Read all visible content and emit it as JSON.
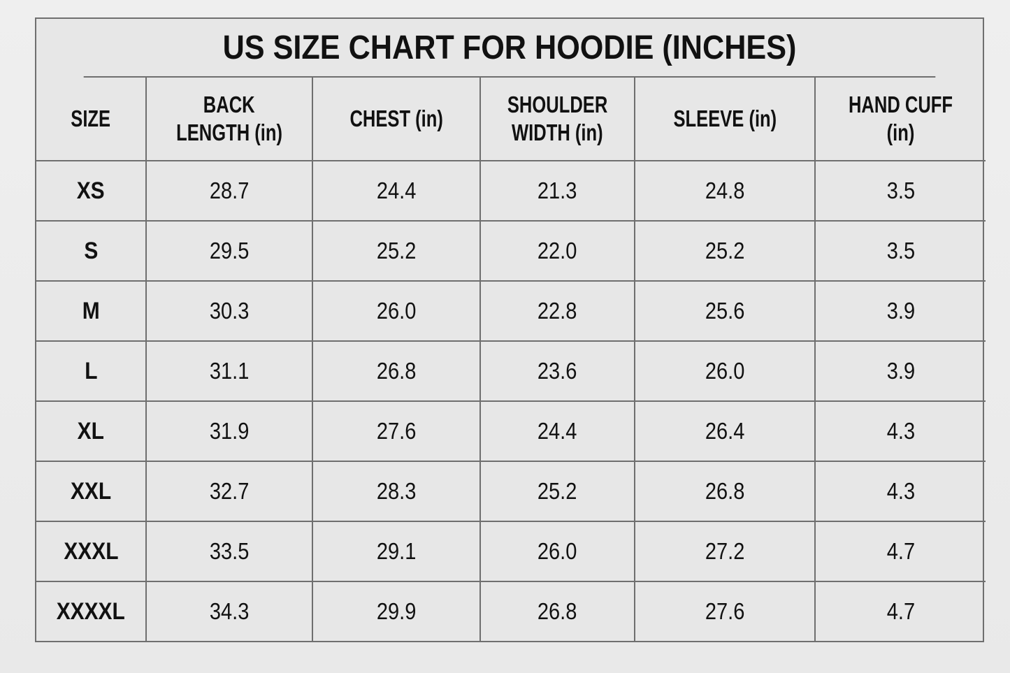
{
  "title": "US SIZE CHART FOR HOODIE (INCHES)",
  "headers": [
    {
      "line1": "SIZE",
      "line2": ""
    },
    {
      "line1": "BACK",
      "line2": "LENGTH (in)"
    },
    {
      "line1": "CHEST (in)",
      "line2": ""
    },
    {
      "line1": "SHOULDER",
      "line2": "WIDTH (in)"
    },
    {
      "line1": "SLEEVE (in)",
      "line2": ""
    },
    {
      "line1": "HAND CUFF (in)",
      "line2": ""
    }
  ],
  "rows": [
    [
      "XS",
      "28.7",
      "24.4",
      "21.3",
      "24.8",
      "3.5"
    ],
    [
      "S",
      "29.5",
      "25.2",
      "22.0",
      "25.2",
      "3.5"
    ],
    [
      "M",
      "30.3",
      "26.0",
      "22.8",
      "25.6",
      "3.9"
    ],
    [
      "L",
      "31.1",
      "26.8",
      "23.6",
      "26.0",
      "3.9"
    ],
    [
      "XL",
      "31.9",
      "27.6",
      "24.4",
      "26.4",
      "4.3"
    ],
    [
      "XXL",
      "32.7",
      "28.3",
      "25.2",
      "26.8",
      "4.3"
    ],
    [
      "XXXL",
      "33.5",
      "29.1",
      "26.0",
      "27.2",
      "4.7"
    ],
    [
      "XXXXL",
      "34.3",
      "29.9",
      "26.8",
      "27.6",
      "4.7"
    ]
  ]
}
